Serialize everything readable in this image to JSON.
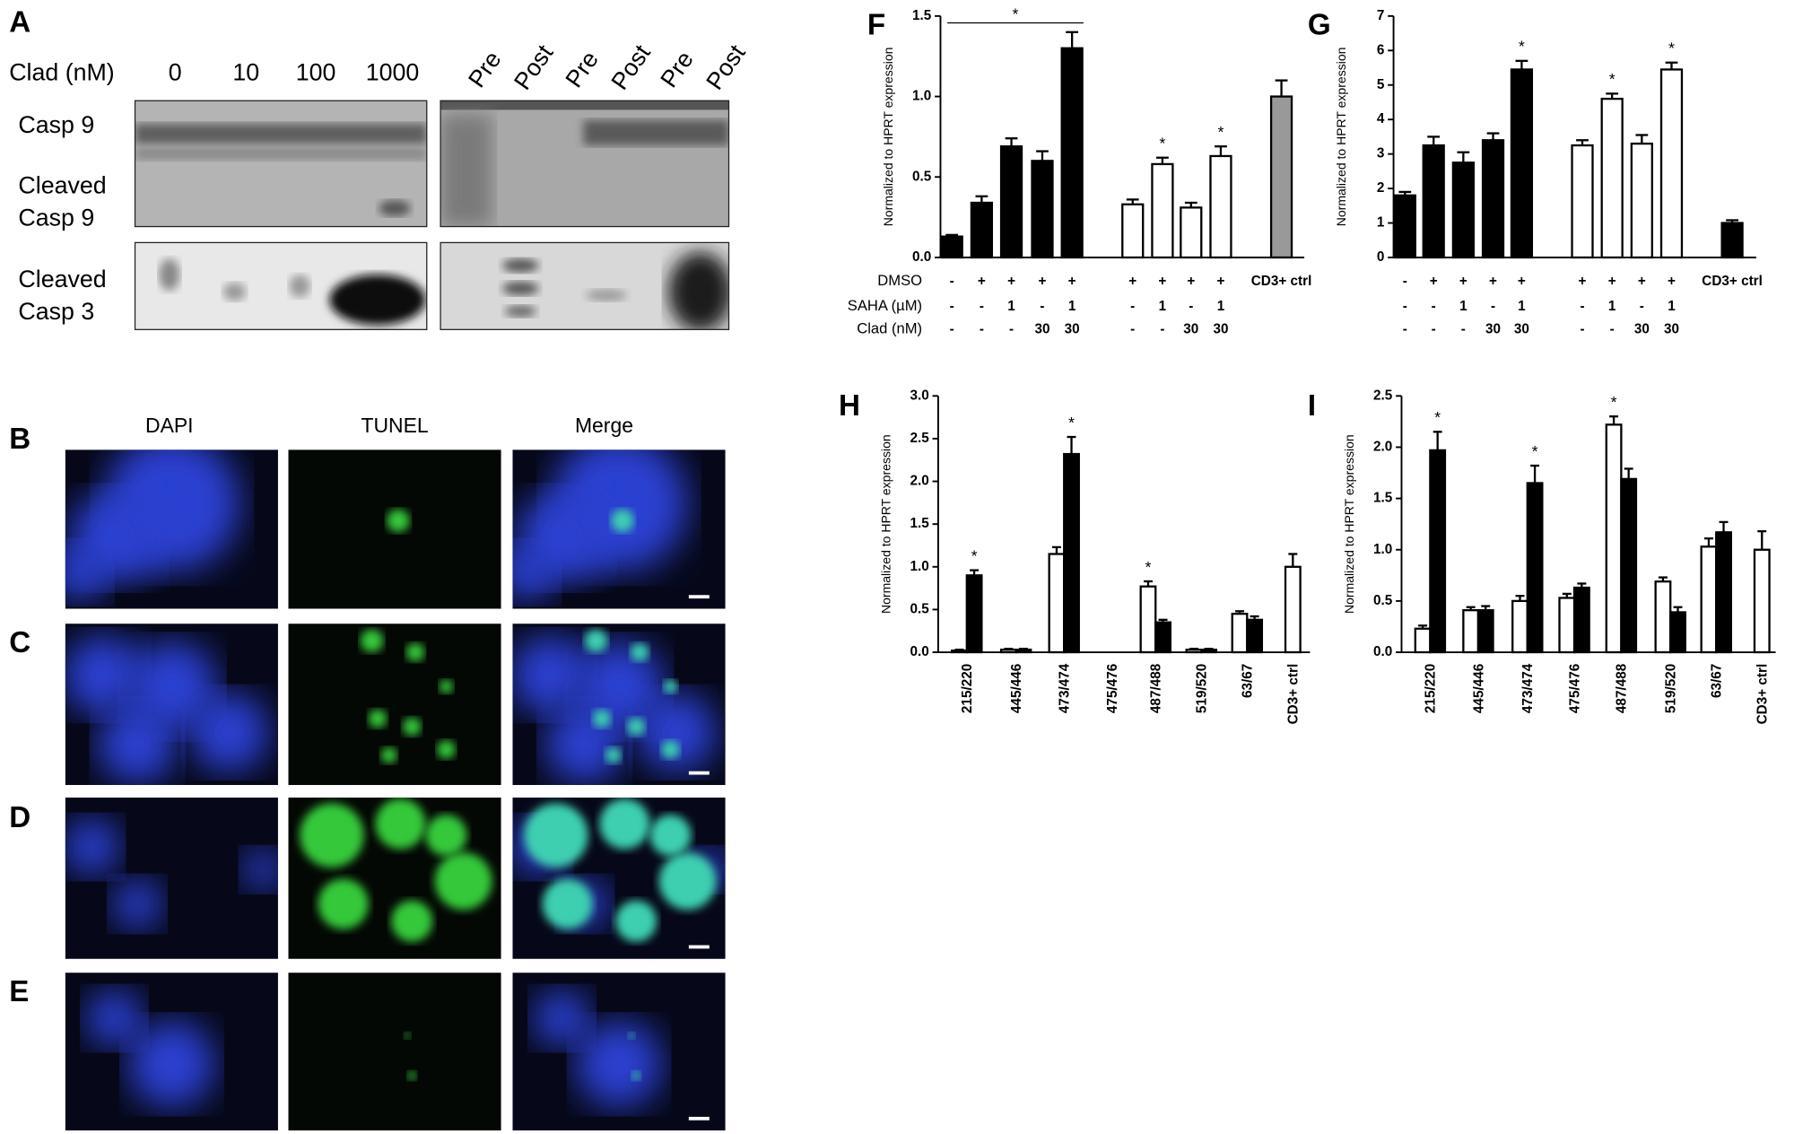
{
  "figure": {
    "panel_letters": [
      "A",
      "B",
      "C",
      "D",
      "E",
      "F",
      "G",
      "H",
      "I"
    ],
    "blot": {
      "dose_label": "Clad (nM)",
      "doses": [
        "0",
        "10",
        "100",
        "1000"
      ],
      "timepoints": [
        "Pre",
        "Post",
        "Pre",
        "Post",
        "Pre",
        "Post"
      ],
      "row_labels": [
        [
          "Casp 9"
        ],
        [
          "Cleaved",
          "Casp 9"
        ],
        [
          "Cleaved",
          "Casp 3"
        ]
      ]
    },
    "microscopy": {
      "columns": [
        "DAPI",
        "TUNEL",
        "Merge"
      ]
    }
  },
  "chart_data": [
    {
      "type": "bar",
      "y_label": "Normalized to  HPRT expression",
      "ylim": [
        0,
        1.5
      ],
      "yticks": [
        {
          "value": 0,
          "label": "0.0"
        },
        0.5,
        {
          "value": 1,
          "label": "1.0"
        },
        1.5
      ],
      "categories": [
        null,
        null,
        null,
        null,
        null,
        null,
        null,
        null,
        null,
        "CD3+ ctrl"
      ],
      "condition_rows": [
        {
          "label": "DMSO",
          "cells": [
            "-",
            "+",
            "+",
            "+",
            "+",
            "+",
            "+",
            "+",
            "+"
          ]
        },
        {
          "label": "SAHA (µM)",
          "cells": [
            "-",
            "-",
            "1",
            "-",
            "1",
            "-",
            "1",
            "-",
            "1"
          ]
        },
        {
          "label": "Clad (nM)",
          "cells": [
            "-",
            "-",
            "-",
            "30",
            "30",
            "-",
            "-",
            "30",
            "30"
          ]
        }
      ],
      "bracket_label": "*",
      "series": [
        {
          "color": "#000000",
          "values": [
            0.13,
            0.34,
            0.69,
            0.6,
            1.3,
            null,
            null,
            null,
            null,
            null
          ],
          "errors": [
            0.01,
            0.04,
            0.05,
            0.06,
            0.1,
            null,
            null,
            null,
            null,
            null
          ],
          "significance": [
            null,
            null,
            null,
            null,
            null,
            null,
            null,
            null,
            null,
            null
          ]
        },
        {
          "color": "#ffffff",
          "values": [
            null,
            null,
            null,
            null,
            null,
            0.33,
            0.58,
            0.31,
            0.63,
            null
          ],
          "errors": [
            null,
            null,
            null,
            null,
            null,
            0.03,
            0.04,
            0.03,
            0.06,
            null
          ],
          "significance": [
            null,
            null,
            null,
            null,
            null,
            null,
            "*",
            null,
            "*",
            null
          ]
        },
        {
          "color": "#999999",
          "values": [
            null,
            null,
            null,
            null,
            null,
            null,
            null,
            null,
            null,
            1.0
          ],
          "errors": [
            null,
            null,
            null,
            null,
            null,
            null,
            null,
            null,
            null,
            0.1
          ],
          "significance": [
            null,
            null,
            null,
            null,
            null,
            null,
            null,
            null,
            null,
            null
          ]
        }
      ]
    },
    {
      "type": "bar",
      "y_label": "Normalized to  HPRT expression",
      "ylim": [
        0,
        7
      ],
      "yticks": [
        0,
        1,
        2,
        3,
        4,
        5,
        6,
        7
      ],
      "categories": [
        null,
        null,
        null,
        null,
        null,
        null,
        null,
        null,
        null,
        "CD3+ ctrl"
      ],
      "condition_rows": [
        {
          "cells": [
            "-",
            "+",
            "+",
            "+",
            "+",
            "+",
            "+",
            "+",
            "+"
          ]
        },
        {
          "cells": [
            "-",
            "-",
            "1",
            "-",
            "1",
            "-",
            "1",
            "-",
            "1"
          ]
        },
        {
          "cells": [
            "-",
            "-",
            "-",
            "30",
            "30",
            "-",
            "-",
            "30",
            "30"
          ]
        }
      ],
      "series": [
        {
          "color": "#000000",
          "values": [
            1.8,
            3.25,
            2.75,
            3.4,
            5.45,
            null,
            null,
            null,
            null,
            1.0
          ],
          "errors": [
            0.1,
            0.25,
            0.3,
            0.2,
            0.25,
            null,
            null,
            null,
            null,
            0.08
          ],
          "significance": [
            null,
            null,
            null,
            null,
            "*",
            null,
            null,
            null,
            null,
            null
          ]
        },
        {
          "color": "#ffffff",
          "values": [
            null,
            null,
            null,
            null,
            null,
            3.25,
            4.6,
            3.3,
            5.45,
            null
          ],
          "errors": [
            null,
            null,
            null,
            null,
            null,
            0.15,
            0.15,
            0.25,
            0.2,
            null
          ],
          "significance": [
            null,
            null,
            null,
            null,
            null,
            null,
            "*",
            null,
            "*",
            null
          ]
        }
      ]
    },
    {
      "type": "bar",
      "y_label": "Normalized to HPRT expression",
      "ylim": [
        0,
        3
      ],
      "yticks": [
        {
          "value": 0,
          "label": "0.0"
        },
        0.5,
        {
          "value": 1,
          "label": "1.0"
        },
        1.5,
        {
          "value": 2,
          "label": "2.0"
        },
        2.5,
        {
          "value": 3,
          "label": "3.0"
        }
      ],
      "categories": [
        "215/220",
        "445/446",
        "473/474",
        "475/476",
        "487/488",
        "519/520",
        "63/67",
        "CD3+ ctrl"
      ],
      "series": [
        {
          "color": "#ffffff",
          "values": [
            0.02,
            0.03,
            1.15,
            null,
            0.77,
            0.03,
            0.45,
            1.0
          ],
          "errors": [
            0.01,
            0.01,
            0.08,
            null,
            0.06,
            0.01,
            0.03,
            0.15
          ],
          "significance": [
            null,
            null,
            null,
            null,
            "*",
            null,
            null,
            null
          ]
        },
        {
          "color": "#000000",
          "values": [
            0.9,
            0.03,
            2.32,
            null,
            0.35,
            0.03,
            0.38,
            null
          ],
          "errors": [
            0.06,
            0.01,
            0.2,
            null,
            0.03,
            0.01,
            0.04,
            null
          ],
          "significance": [
            "*",
            null,
            "*",
            null,
            null,
            null,
            null,
            null
          ]
        }
      ]
    },
    {
      "type": "bar",
      "y_label": "Normalized to HPRT expression",
      "ylim": [
        0,
        2.5
      ],
      "yticks": [
        {
          "value": 0,
          "label": "0.0"
        },
        0.5,
        {
          "value": 1,
          "label": "1.0"
        },
        1.5,
        {
          "value": 2,
          "label": "2.0"
        },
        2.5
      ],
      "categories": [
        "215/220",
        "445/446",
        "473/474",
        "475/476",
        "487/488",
        "519/520",
        "63/67",
        "CD3+ ctrl"
      ],
      "series": [
        {
          "color": "#ffffff",
          "values": [
            0.23,
            0.41,
            0.5,
            0.53,
            2.22,
            0.69,
            1.03,
            1.0
          ],
          "errors": [
            0.03,
            0.03,
            0.05,
            0.04,
            0.08,
            0.04,
            0.08,
            0.18
          ],
          "significance": [
            null,
            null,
            null,
            null,
            "*",
            null,
            null,
            null
          ]
        },
        {
          "color": "#000000",
          "values": [
            1.97,
            0.41,
            1.65,
            0.63,
            1.69,
            0.39,
            1.17,
            null
          ],
          "errors": [
            0.18,
            0.04,
            0.17,
            0.04,
            0.1,
            0.05,
            0.1,
            null
          ],
          "significance": [
            "*",
            null,
            "*",
            null,
            null,
            null,
            null,
            null
          ]
        }
      ]
    }
  ]
}
